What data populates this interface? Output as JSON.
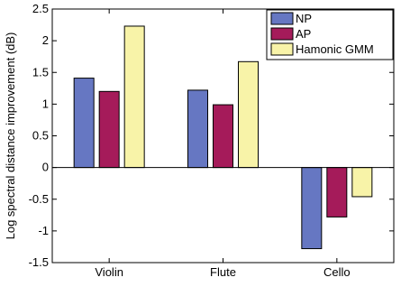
{
  "chart_data": {
    "type": "bar",
    "categories": [
      "Violin",
      "Flute",
      "Cello"
    ],
    "series": [
      {
        "name": "NP",
        "values": [
          1.41,
          1.22,
          -1.28
        ],
        "color": "#6677c2"
      },
      {
        "name": "AP",
        "values": [
          1.2,
          0.99,
          -0.78
        ],
        "color": "#a51b5a"
      },
      {
        "name": "Hamonic GMM",
        "values": [
          2.23,
          1.67,
          -0.46
        ],
        "color": "#f8f3a8"
      }
    ],
    "ylabel": "Log spectral distance improvement (dB)",
    "ylim": [
      -1.5,
      2.5
    ],
    "yticks": [
      -1.5,
      -1,
      -0.5,
      0,
      0.5,
      1,
      1.5,
      2,
      2.5
    ],
    "ytick_labels": [
      "-1.5",
      "-1",
      "-0.5",
      "0",
      "0.5",
      "1",
      "1.5",
      "2",
      "2.5"
    ],
    "grid": false,
    "legend_position": "top-right"
  }
}
